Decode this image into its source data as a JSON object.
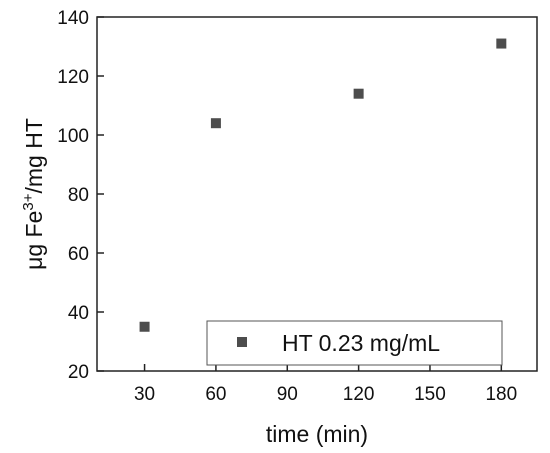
{
  "chart_data": {
    "type": "scatter",
    "title": "",
    "xlabel": "time (min)",
    "ylabel": {
      "prefix": "μg Fe",
      "superscript": "3+",
      "suffix": "/mg HT"
    },
    "xlim": [
      10,
      195
    ],
    "ylim": [
      20,
      140
    ],
    "xticks": [
      30,
      60,
      90,
      120,
      150,
      180
    ],
    "yticks": [
      20,
      40,
      60,
      80,
      100,
      120,
      140
    ],
    "grid": false,
    "legend_position": "bottom-right",
    "series": [
      {
        "name": "HT 0.23 mg/mL",
        "marker": "square",
        "color": "#4d4d4d",
        "points": [
          {
            "x": 30,
            "y": 35
          },
          {
            "x": 60,
            "y": 104
          },
          {
            "x": 120,
            "y": 114
          },
          {
            "x": 180,
            "y": 131
          }
        ]
      }
    ]
  }
}
